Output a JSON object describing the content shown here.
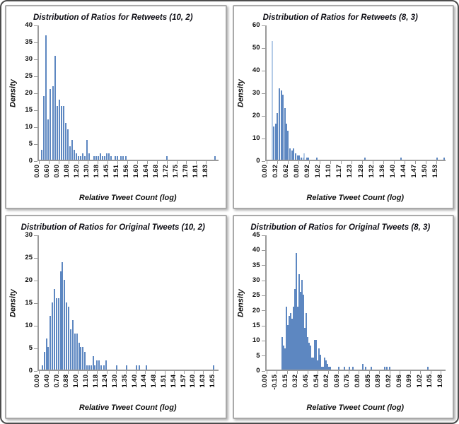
{
  "figure": {
    "background": "#ffffff",
    "frame_border_color": "#4d4d4d",
    "panel_border_color": "#a9a9a9",
    "layout": "2x2 grid of histogram panels",
    "bars_x_units": "fraction of plot width from y-axis",
    "bar_color": "#5d87c1",
    "bar_color_light": "#b4cbe7",
    "axis_color": "#9a9a9a",
    "text_color": "#0d0d0d"
  },
  "chart_data": [
    {
      "type": "bar",
      "title": "Distribution of Ratios for Retweets (10, 2)",
      "ylabel": "Density",
      "xlabel": "Relative Tweet Count (log)",
      "ylim": [
        0,
        40
      ],
      "yticks": [
        0,
        5,
        10,
        15,
        20,
        25,
        30,
        35,
        40
      ],
      "xtick_labels": [
        "0.00",
        "0.60",
        "0.90",
        "1.08",
        "1.20",
        "1.30",
        "1.38",
        "1.45",
        "1.51",
        "1.56",
        "1.60",
        "1.64",
        "1.68",
        "1.72",
        "1.75",
        "1.78",
        "1.81",
        "1.83"
      ],
      "last_tick_frac": 0.932,
      "grid": false,
      "legend": null,
      "bars": [
        [
          0.012,
          3
        ],
        [
          0.024,
          19
        ],
        [
          0.036,
          37
        ],
        [
          0.048,
          12
        ],
        [
          0.06,
          21
        ],
        [
          0.073,
          22
        ],
        [
          0.085,
          31
        ],
        [
          0.097,
          16
        ],
        [
          0.109,
          18
        ],
        [
          0.121,
          16
        ],
        [
          0.133,
          16
        ],
        [
          0.145,
          11
        ],
        [
          0.157,
          9
        ],
        [
          0.169,
          4
        ],
        [
          0.181,
          6
        ],
        [
          0.194,
          3
        ],
        [
          0.206,
          2
        ],
        [
          0.218,
          1
        ],
        [
          0.23,
          1
        ],
        [
          0.242,
          2
        ],
        [
          0.254,
          1
        ],
        [
          0.266,
          6
        ],
        [
          0.278,
          2
        ],
        [
          0.302,
          1
        ],
        [
          0.315,
          1
        ],
        [
          0.327,
          1
        ],
        [
          0.339,
          2
        ],
        [
          0.351,
          1
        ],
        [
          0.363,
          1
        ],
        [
          0.375,
          2
        ],
        [
          0.387,
          2
        ],
        [
          0.399,
          1
        ],
        [
          0.423,
          1
        ],
        [
          0.435,
          1
        ],
        [
          0.455,
          1
        ],
        [
          0.467,
          1
        ],
        [
          0.48,
          1
        ],
        [
          0.71,
          1
        ],
        [
          0.98,
          1
        ]
      ]
    },
    {
      "type": "bar",
      "title": "Distribution of Ratios for Retweets (8, 3)",
      "ylabel": "Density",
      "xlabel": "Relative Tweet Count (log)",
      "ylim": [
        0,
        60
      ],
      "yticks": [
        0,
        10,
        20,
        30,
        40,
        50,
        60
      ],
      "xtick_labels": [
        "0.00",
        "0.32",
        "0.62",
        "0.80",
        "0.92",
        "1.02",
        "1.10",
        "1.17",
        "1.23",
        "1.28",
        "1.32",
        "1.36",
        "1.40",
        "1.44",
        "1.47",
        "1.50",
        "1.53"
      ],
      "last_tick_frac": 0.947,
      "grid": false,
      "legend": null,
      "bars": [
        [
          0.03,
          53,
          1
        ],
        [
          0.038,
          15
        ],
        [
          0.049,
          16
        ],
        [
          0.057,
          21
        ],
        [
          0.068,
          32
        ],
        [
          0.08,
          31
        ],
        [
          0.087,
          29
        ],
        [
          0.099,
          23
        ],
        [
          0.11,
          16
        ],
        [
          0.118,
          13
        ],
        [
          0.129,
          5
        ],
        [
          0.141,
          4
        ],
        [
          0.148,
          5
        ],
        [
          0.16,
          3
        ],
        [
          0.171,
          2
        ],
        [
          0.179,
          2
        ],
        [
          0.19,
          1
        ],
        [
          0.202,
          1
        ],
        [
          0.209,
          3,
          1
        ],
        [
          0.221,
          1
        ],
        [
          0.232,
          1
        ],
        [
          0.28,
          1
        ],
        [
          0.548,
          1
        ],
        [
          0.749,
          1
        ],
        [
          0.947,
          1
        ],
        [
          0.988,
          1
        ]
      ]
    },
    {
      "type": "bar",
      "title": "Distribution of Ratios for Original Tweets (10, 2)",
      "ylabel": "Density",
      "xlabel": "Relative Tweet Count (log)",
      "ylim": [
        0,
        30
      ],
      "yticks": [
        0,
        5,
        10,
        15,
        20,
        25,
        30
      ],
      "xtick_labels": [
        "0.00",
        "0.40",
        "0.70",
        "0.88",
        "1.00",
        "1.10",
        "1.18",
        "1.24",
        "1.30",
        "1.35",
        "1.40",
        "1.44",
        "1.48",
        "1.51",
        "1.54",
        "1.57",
        "1.60",
        "1.63",
        "1.65"
      ],
      "last_tick_frac": 0.97,
      "grid": false,
      "legend": null,
      "bars": [
        [
          0.015,
          1
        ],
        [
          0.026,
          4
        ],
        [
          0.038,
          7
        ],
        [
          0.049,
          5
        ],
        [
          0.06,
          12
        ],
        [
          0.072,
          15
        ],
        [
          0.083,
          18
        ],
        [
          0.094,
          16
        ],
        [
          0.106,
          16
        ],
        [
          0.117,
          22
        ],
        [
          0.128,
          24
        ],
        [
          0.14,
          20
        ],
        [
          0.151,
          15
        ],
        [
          0.162,
          14
        ],
        [
          0.174,
          9
        ],
        [
          0.185,
          11
        ],
        [
          0.196,
          8
        ],
        [
          0.208,
          8
        ],
        [
          0.219,
          6
        ],
        [
          0.23,
          5
        ],
        [
          0.242,
          5
        ],
        [
          0.253,
          4
        ],
        [
          0.264,
          1
        ],
        [
          0.275,
          1
        ],
        [
          0.287,
          1
        ],
        [
          0.298,
          3
        ],
        [
          0.309,
          1
        ],
        [
          0.321,
          2
        ],
        [
          0.332,
          2
        ],
        [
          0.343,
          1
        ],
        [
          0.358,
          1
        ],
        [
          0.372,
          2
        ],
        [
          0.431,
          1
        ],
        [
          0.487,
          1
        ],
        [
          0.539,
          1
        ],
        [
          0.555,
          1
        ],
        [
          0.597,
          1
        ],
        [
          0.97,
          1
        ]
      ]
    },
    {
      "type": "bar",
      "title": "Distribution of Ratios for Original Tweets (8, 3)",
      "ylabel": "Density",
      "xlabel": "Relative Tweet Count (log)",
      "ylim": [
        0,
        45
      ],
      "yticks": [
        0,
        5,
        10,
        15,
        20,
        25,
        30,
        35,
        40,
        45
      ],
      "xtick_labels": [
        "0.00",
        "-0.15",
        "0.15",
        "0.32",
        "0.45",
        "0.54",
        "0.62",
        "0.69",
        "0.75",
        "0.80",
        "0.85",
        "0.89",
        "0.92",
        "0.96",
        "0.99",
        "1.02",
        "1.05",
        "1.08"
      ],
      "last_tick_frac": 0.973,
      "grid": false,
      "legend": null,
      "bars": [
        [
          0.086,
          11
        ],
        [
          0.094,
          8
        ],
        [
          0.102,
          7
        ],
        [
          0.11,
          21
        ],
        [
          0.118,
          15
        ],
        [
          0.125,
          18
        ],
        [
          0.133,
          19
        ],
        [
          0.141,
          17
        ],
        [
          0.149,
          21
        ],
        [
          0.157,
          27
        ],
        [
          0.165,
          39
        ],
        [
          0.173,
          21
        ],
        [
          0.181,
          32
        ],
        [
          0.188,
          26
        ],
        [
          0.196,
          30
        ],
        [
          0.204,
          25
        ],
        [
          0.212,
          14
        ],
        [
          0.22,
          19
        ],
        [
          0.228,
          11
        ],
        [
          0.236,
          9
        ],
        [
          0.244,
          8
        ],
        [
          0.251,
          4
        ],
        [
          0.259,
          4
        ],
        [
          0.267,
          10
        ],
        [
          0.275,
          10
        ],
        [
          0.283,
          3
        ],
        [
          0.291,
          7
        ],
        [
          0.299,
          5
        ],
        [
          0.307,
          1
        ],
        [
          0.314,
          1
        ],
        [
          0.322,
          4
        ],
        [
          0.33,
          3
        ],
        [
          0.338,
          2
        ],
        [
          0.346,
          1
        ],
        [
          0.354,
          1
        ],
        [
          0.4,
          1
        ],
        [
          0.43,
          1
        ],
        [
          0.46,
          1
        ],
        [
          0.479,
          1
        ],
        [
          0.536,
          2
        ],
        [
          0.551,
          1
        ],
        [
          0.581,
          1
        ],
        [
          0.655,
          1
        ],
        [
          0.667,
          1
        ],
        [
          0.685,
          1
        ],
        [
          0.899,
          1
        ]
      ]
    }
  ]
}
